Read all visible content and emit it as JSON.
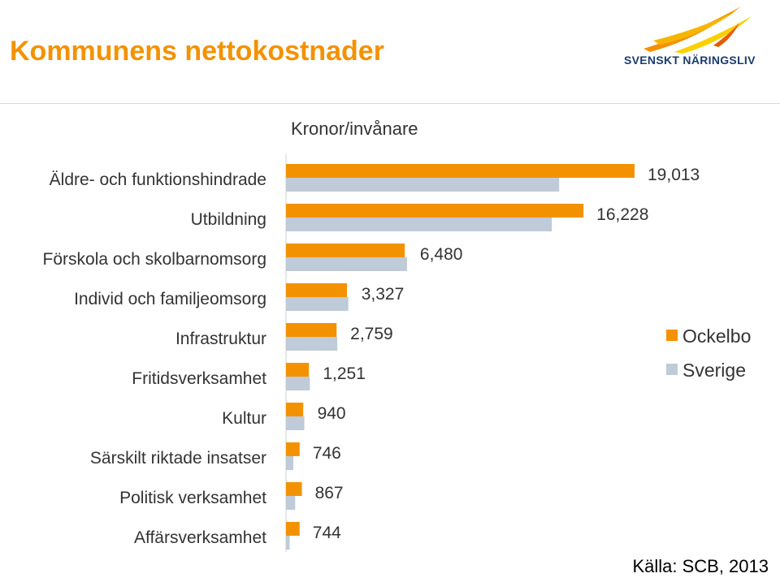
{
  "header": {
    "title": "Kommunens nettokostnader",
    "logo_text": "SVENSKT NÄRINGSLIV"
  },
  "footer": {
    "source": "Källa: SCB, 2013"
  },
  "colors": {
    "title": "#f39200",
    "ockelbo": "#f39200",
    "sverige": "#bfcbd8",
    "logo_text": "#1d3c6e"
  },
  "chart_data": {
    "type": "bar",
    "orientation": "horizontal",
    "title": "",
    "unit_label": "Kronor/invånare",
    "categories": [
      "Äldre- och funktionshindrade",
      "Utbildning",
      "Förskola och skolbarnomsorg",
      "Individ och familjeomsorg",
      "Infrastruktur",
      "Fritidsverksamhet",
      "Kultur",
      "Särskilt riktade insatser",
      "Politisk verksamhet",
      "Affärsverksamhet"
    ],
    "series": [
      {
        "name": "Ockelbo",
        "values": [
          19013,
          16228,
          6480,
          3327,
          2759,
          1251,
          940,
          746,
          867,
          744
        ],
        "labels": [
          "19,013",
          "16,228",
          "6,480",
          "3,327",
          "2,759",
          "1,251",
          "940",
          "746",
          "867",
          "744"
        ]
      },
      {
        "name": "Sverige",
        "values": [
          14900,
          14500,
          6600,
          3400,
          2800,
          1300,
          1000,
          400,
          500,
          200
        ]
      }
    ],
    "xlim": [
      0,
      19500
    ],
    "grid": false,
    "legend": "right"
  }
}
